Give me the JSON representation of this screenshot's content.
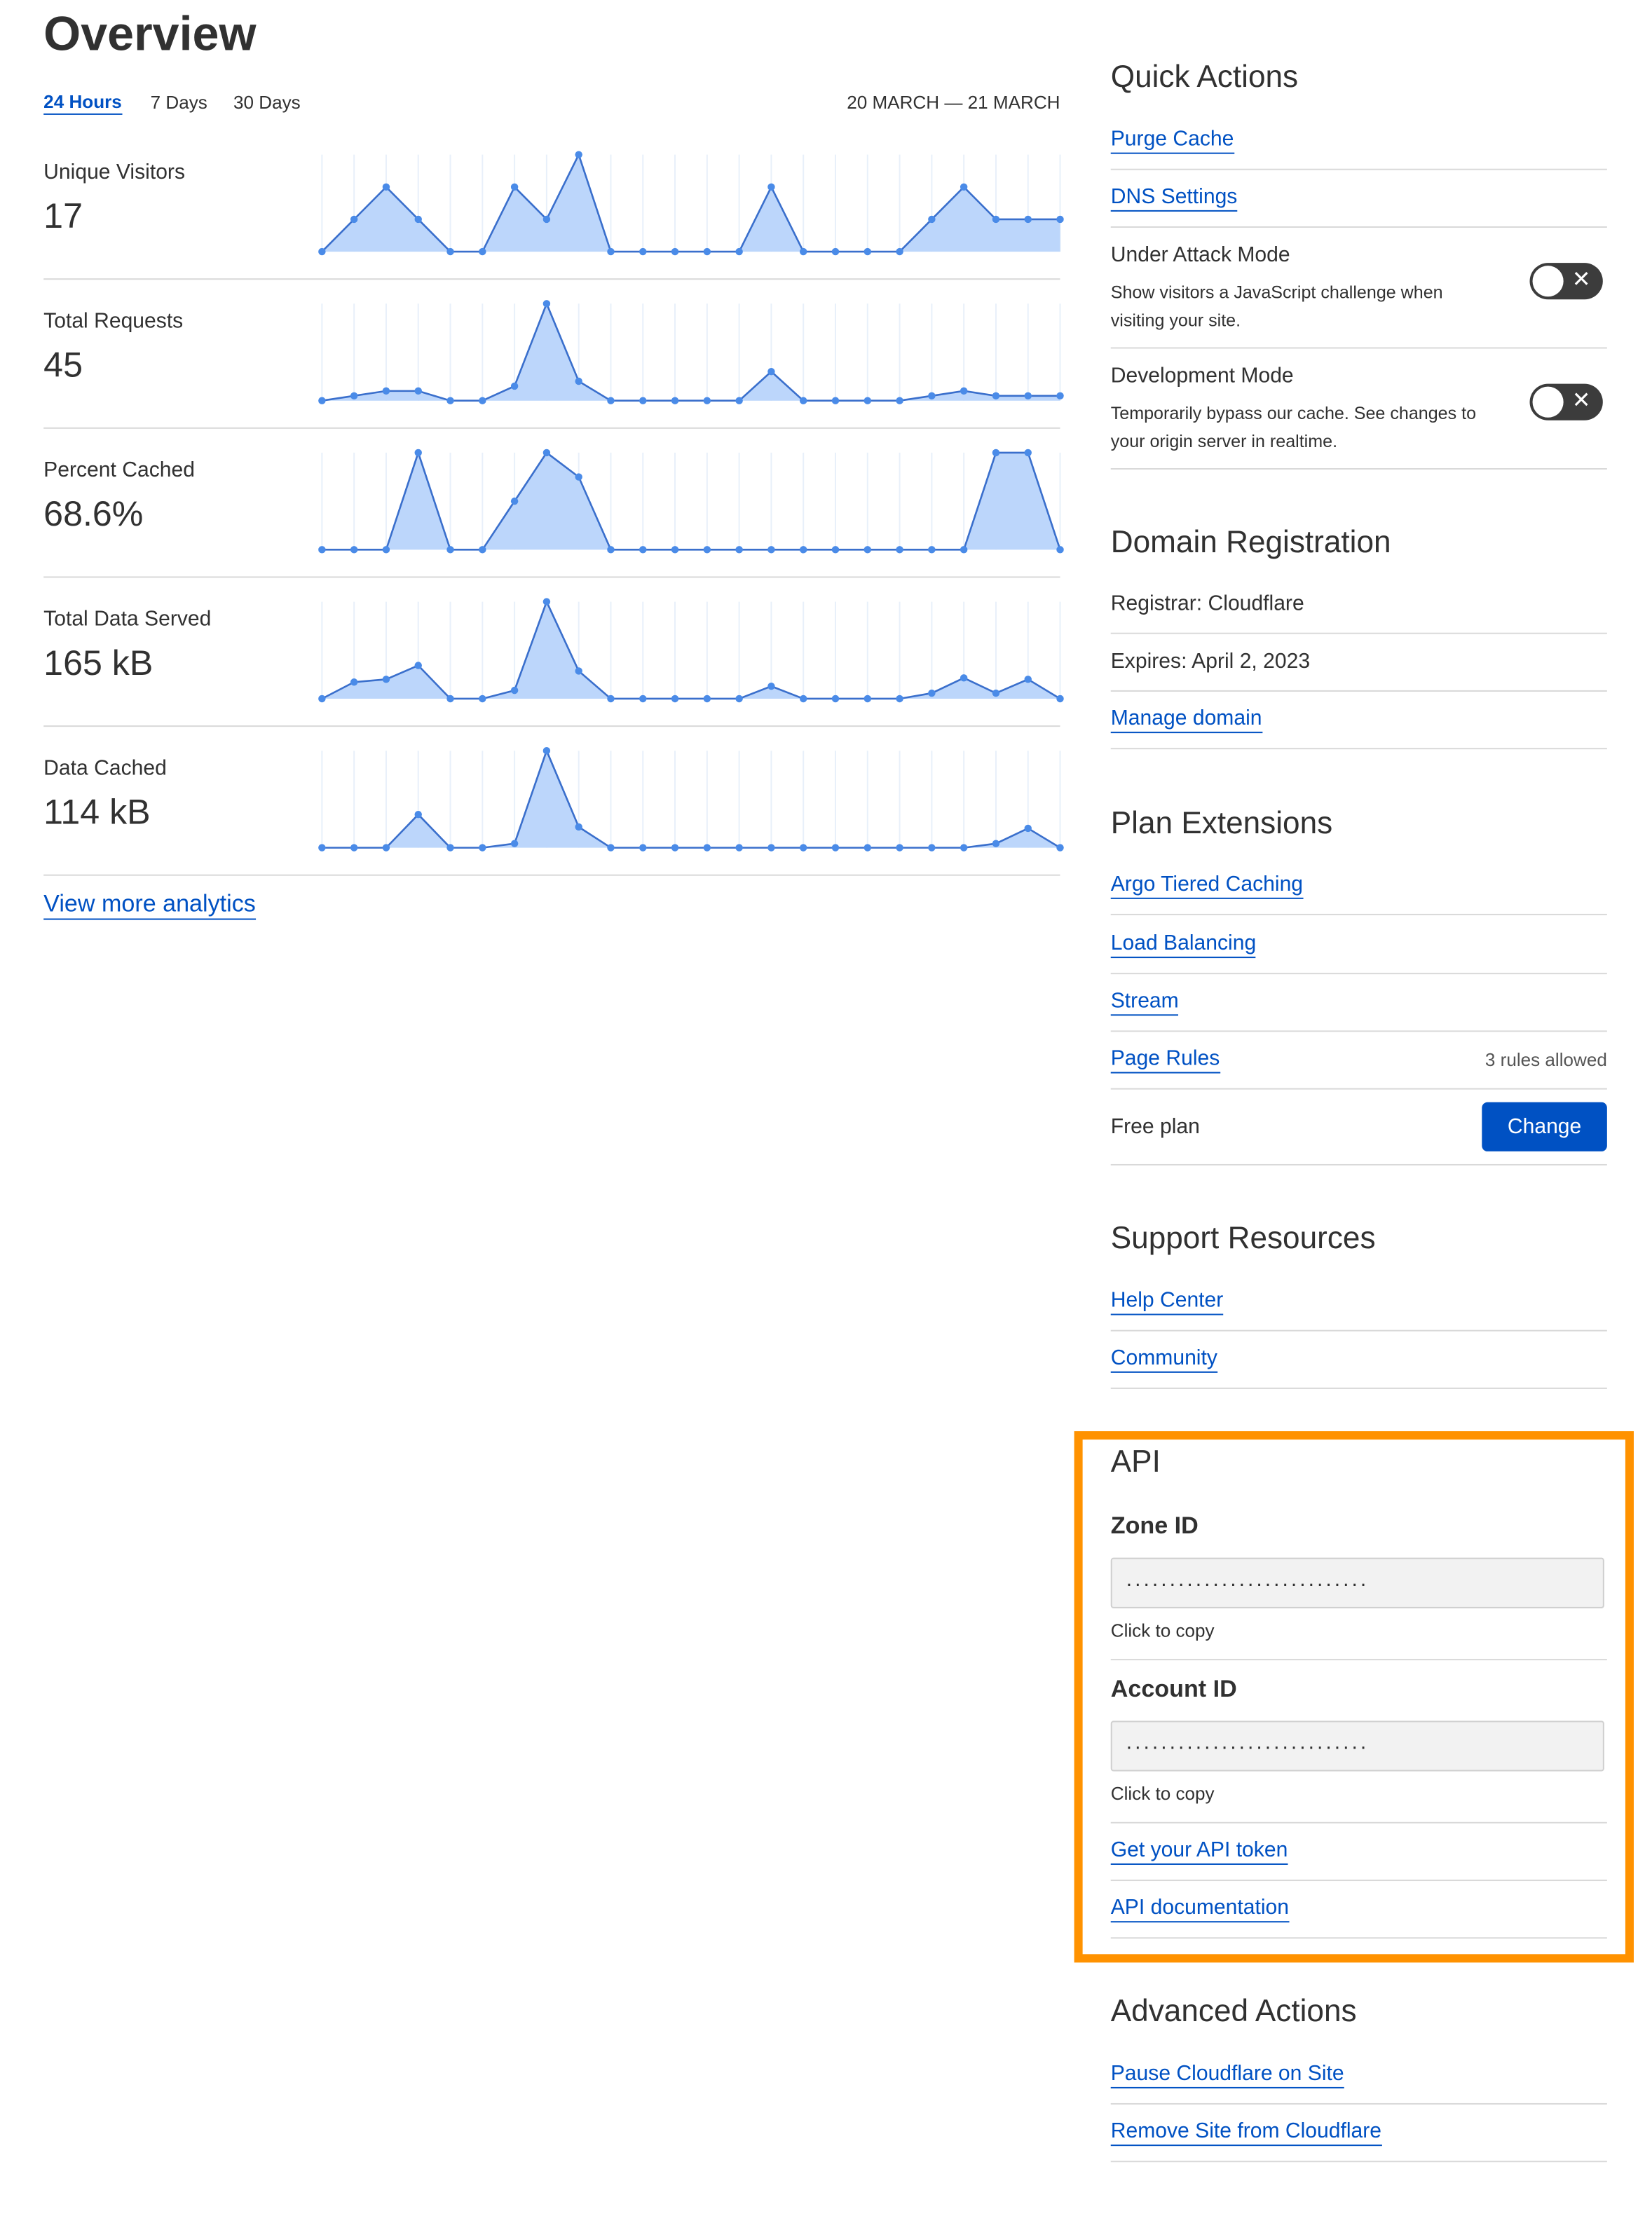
{
  "header": {
    "title": "Overview",
    "ranges": [
      "24 Hours",
      "7 Days",
      "30 Days"
    ],
    "date_range": "20 MARCH — 21 MARCH"
  },
  "metrics": [
    {
      "label": "Unique Visitors",
      "value": "17",
      "spark": [
        0,
        1,
        2,
        1,
        0,
        0,
        2,
        1,
        3,
        0,
        0,
        0,
        0,
        0,
        2,
        0,
        0,
        0,
        0,
        1,
        2,
        1,
        1,
        1
      ]
    },
    {
      "label": "Total Requests",
      "value": "45",
      "spark": [
        0,
        1,
        2,
        2,
        0,
        0,
        3,
        20,
        4,
        0,
        0,
        0,
        0,
        0,
        6,
        0,
        0,
        0,
        0,
        1,
        2,
        1,
        1,
        1
      ]
    },
    {
      "label": "Percent Cached",
      "value": "68.6%",
      "spark": [
        0,
        0,
        0,
        100,
        0,
        0,
        50,
        100,
        75,
        0,
        0,
        0,
        0,
        0,
        0,
        0,
        0,
        0,
        0,
        0,
        0,
        100,
        100,
        0
      ]
    },
    {
      "label": "Total Data Served",
      "value": "165 kB",
      "spark": [
        0,
        12,
        14,
        24,
        0,
        0,
        6,
        70,
        20,
        0,
        0,
        0,
        0,
        0,
        9,
        0,
        0,
        0,
        0,
        4,
        15,
        4,
        14,
        0
      ]
    },
    {
      "label": "Data Cached",
      "value": "114 kB",
      "spark": [
        0,
        0,
        0,
        24,
        0,
        0,
        3,
        70,
        15,
        0,
        0,
        0,
        0,
        0,
        0,
        0,
        0,
        0,
        0,
        0,
        0,
        3,
        14,
        0
      ]
    }
  ],
  "view_more": "View more analytics",
  "quick_actions": {
    "title": "Quick Actions",
    "links": [
      "Purge Cache",
      "DNS Settings"
    ],
    "toggles": [
      {
        "title": "Under Attack Mode",
        "description": "Show visitors a JavaScript challenge when visiting your site."
      },
      {
        "title": "Development Mode",
        "description": "Temporarily bypass our cache. See changes to your origin server in realtime."
      }
    ]
  },
  "domain_registration": {
    "title": "Domain Registration",
    "registrar": "Registrar: Cloudflare",
    "expires": "Expires: April 2, 2023",
    "link": "Manage domain"
  },
  "plan_extensions": {
    "title": "Plan Extensions",
    "links": [
      "Argo Tiered Caching",
      "Load Balancing",
      "Stream",
      "Page Rules"
    ],
    "page_rules_note": "3 rules allowed",
    "plan": "Free plan",
    "button": "Change"
  },
  "support": {
    "title": "Support Resources",
    "links": [
      "Help Center",
      "Community"
    ]
  },
  "api": {
    "title": "API",
    "zone_label": "Zone ID",
    "zone_value": "............................",
    "zone_hint": "Click to copy",
    "account_label": "Account ID",
    "account_value": "............................",
    "account_hint": "Click to copy",
    "links": [
      "Get your API token",
      "API documentation"
    ]
  },
  "advanced": {
    "title": "Advanced Actions",
    "links": [
      "Pause Cloudflare on Site",
      "Remove Site from Cloudflare"
    ]
  }
}
